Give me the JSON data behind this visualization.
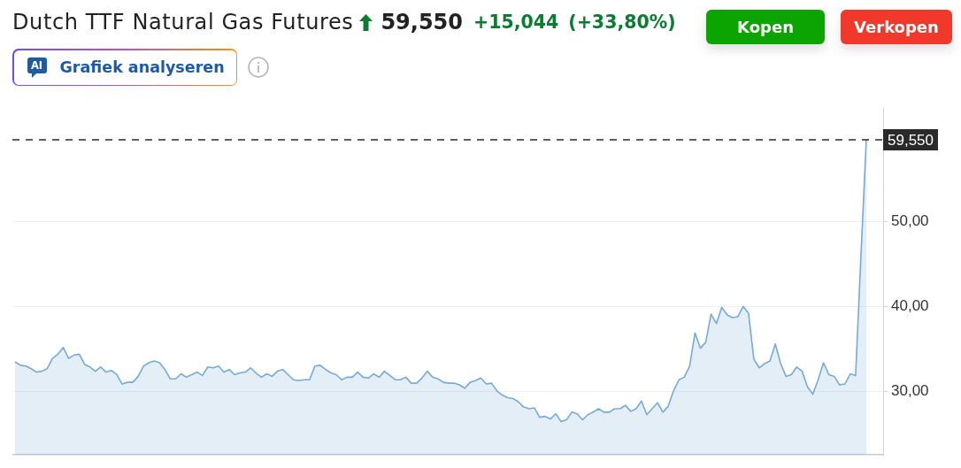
{
  "chart_data": {
    "type": "area",
    "title": "Dutch TTF Natural Gas Futures",
    "categories": [
      null,
      null,
      null,
      null,
      null,
      null,
      null,
      null,
      null,
      null,
      null,
      null,
      null,
      null,
      null,
      null,
      null,
      null,
      null,
      null,
      null,
      null,
      null,
      null,
      null,
      null,
      null,
      null,
      null,
      null,
      null,
      null,
      null,
      null,
      null,
      null,
      null,
      null,
      null,
      null,
      null,
      null,
      null,
      null,
      null,
      null,
      null,
      null,
      null,
      null,
      null,
      null,
      null,
      null,
      null,
      null,
      null,
      null,
      null,
      null,
      null,
      null,
      null,
      null,
      null,
      null,
      null,
      null,
      null,
      null,
      null,
      null,
      null,
      null,
      null,
      null,
      null,
      null,
      null,
      null,
      null,
      null,
      null,
      null,
      null,
      null,
      null,
      null,
      null,
      null,
      null,
      null,
      null,
      null,
      null,
      null,
      null,
      null,
      null,
      null,
      null,
      null,
      null,
      null,
      null,
      null,
      null,
      null,
      null,
      null,
      null,
      null,
      null,
      null,
      null,
      null,
      null,
      null,
      null,
      null,
      null,
      null,
      null,
      null,
      null,
      null,
      null,
      null,
      null,
      null,
      null,
      null,
      null,
      null,
      null,
      null,
      null,
      null,
      null,
      null,
      null,
      null,
      null,
      null,
      null,
      null,
      null,
      null,
      null,
      null,
      null,
      null,
      null,
      null,
      null,
      null,
      null,
      null,
      null,
      null
    ],
    "values": [
      33.5,
      33.1,
      33.0,
      32.7,
      32.3,
      32.4,
      32.7,
      33.9,
      34.4,
      35.2,
      33.9,
      34.3,
      34.4,
      33.2,
      32.9,
      32.4,
      32.9,
      32.3,
      32.5,
      32.0,
      30.9,
      31.1,
      31.1,
      31.8,
      33.0,
      33.4,
      33.6,
      33.4,
      32.6,
      31.5,
      31.5,
      32.1,
      31.7,
      32.0,
      32.3,
      31.9,
      32.9,
      32.8,
      33.0,
      32.3,
      32.6,
      32.0,
      32.2,
      32.3,
      32.8,
      32.2,
      31.7,
      32.1,
      31.8,
      32.4,
      32.6,
      32.0,
      31.4,
      31.3,
      31.4,
      31.4,
      33.0,
      33.1,
      32.6,
      32.2,
      32.0,
      31.4,
      31.7,
      31.7,
      32.3,
      31.7,
      31.6,
      32.1,
      31.7,
      32.4,
      31.9,
      31.4,
      31.4,
      31.7,
      31.0,
      31.0,
      31.6,
      32.4,
      31.7,
      31.5,
      31.1,
      31.0,
      31.0,
      30.8,
      30.4,
      31.1,
      31.3,
      31.6,
      30.9,
      31.0,
      30.1,
      29.6,
      29.3,
      29.2,
      28.8,
      28.2,
      28.0,
      28.1,
      27.0,
      27.1,
      26.8,
      27.4,
      26.5,
      26.7,
      27.6,
      27.4,
      26.7,
      27.3,
      27.6,
      28.0,
      27.6,
      27.6,
      28.0,
      28.0,
      28.4,
      27.7,
      28.0,
      28.9,
      27.3,
      28.0,
      28.7,
      27.6,
      28.3,
      30.1,
      31.4,
      31.7,
      33.0,
      36.9,
      35.1,
      35.8,
      39.1,
      38.0,
      39.9,
      39.0,
      38.7,
      38.8,
      40.0,
      39.2,
      33.8,
      32.8,
      33.3,
      33.6,
      35.6,
      33.3,
      31.8,
      32.0,
      32.9,
      32.4,
      30.6,
      29.7,
      31.4,
      33.4,
      32.0,
      31.8,
      30.8,
      30.9,
      32.1,
      31.9,
      46.0,
      59.55
    ],
    "color": "#77aad6",
    "ylim": [
      22.6,
      63.3
    ],
    "yticks": [
      {
        "value": 30,
        "label": "30,00"
      },
      {
        "value": 40,
        "label": "40,00"
      },
      {
        "value": 50,
        "label": "50,00"
      }
    ],
    "grid": "y",
    "tick_labels": "y",
    "marker": "none",
    "ref_lines": [
      {
        "axis": "y",
        "value": 59.55,
        "label": "59,550",
        "color": "#2a2a2a",
        "line_style": "dashed"
      }
    ],
    "annotations": [
      "59,550",
      "+15,044",
      "(+33,80%)",
      "Kopen",
      "Verkopen",
      "AI",
      "Grafiek analyseren"
    ]
  }
}
